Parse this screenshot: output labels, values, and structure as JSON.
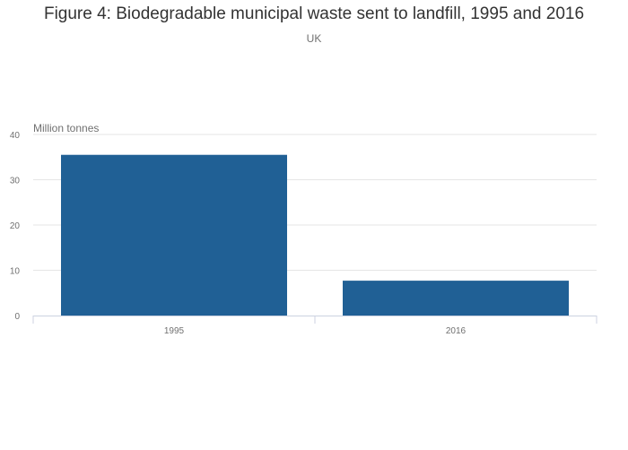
{
  "chart_data": {
    "type": "bar",
    "title": "Figure 4: Biodegradable municipal waste sent to landfill, 1995 and 2016",
    "subtitle": "UK",
    "ylabel": "Million tonnes",
    "xlabel": "",
    "categories": [
      "1995",
      "2016"
    ],
    "values": [
      35.5,
      7.7
    ],
    "ylim": [
      0,
      40
    ],
    "yticks": [
      0,
      10,
      20,
      30,
      40
    ],
    "grid": true,
    "legend": "none",
    "bar_color": "#206095",
    "grid_color": "#e6e6e6",
    "axis_color": "#ccd2e0"
  }
}
